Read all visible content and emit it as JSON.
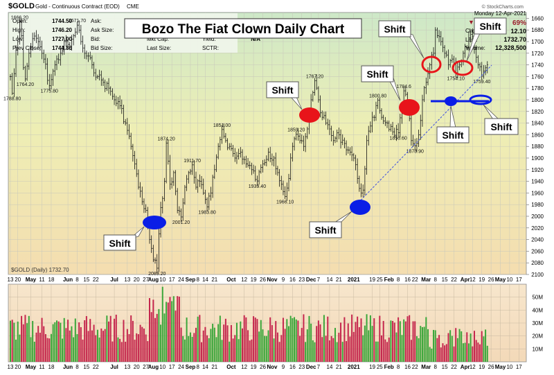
{
  "header": {
    "symbol": "$GOLD",
    "description": "Gold - Continuous Contract (EOD)",
    "exchange": "CME",
    "date": "Monday 12-Apr-2021",
    "copyright": "© StockCharts.com",
    "rows": [
      {
        "label": "Open:",
        "value": "1744.50"
      },
      {
        "label": "High:",
        "value": "1746.20"
      },
      {
        "label": "Low:",
        "value": "1727.00"
      },
      {
        "label": "Prev Close:",
        "value": "1744.80"
      }
    ],
    "col2": [
      "Ask:",
      "Ask Size:",
      "Bid:",
      "Bid Size:"
    ],
    "col3": [
      "Mkt Cap:",
      "Last Size:"
    ],
    "col4": [
      "Yield:",
      "SCTR:"
    ],
    "yield_value": "N/A",
    "change_label": "Chg:",
    "change_pct": "69%",
    "change_value": "12.10",
    "last_label": "Last:",
    "last_value": "1732.70",
    "volume_label": "Volume:",
    "volume_value": "12,328,500",
    "legend": "$GOLD (Daily) 1732.70"
  },
  "title_box": "Bozo The Fiat Clown Daily Chart",
  "callouts": [
    {
      "id": "shift-aug",
      "text": "Shift"
    },
    {
      "id": "shift-nov",
      "text": "Shift"
    },
    {
      "id": "shift-dec",
      "text": "Shift"
    },
    {
      "id": "shift-jan",
      "text": "Shift"
    },
    {
      "id": "shift-feb",
      "text": "Shift"
    },
    {
      "id": "shift-mar-top",
      "text": "Shift"
    },
    {
      "id": "shift-apr-top",
      "text": "Shift"
    },
    {
      "id": "shift-mar-bottom",
      "text": "Shift"
    },
    {
      "id": "shift-apr-bottom",
      "text": "Shift"
    }
  ],
  "colors": {
    "up_volume": "#3aa63a",
    "down_volume": "#c4264d",
    "marker_red": "#e8141a",
    "marker_blue": "#0a1ee6",
    "trendline": "#3c4fe0"
  },
  "chart_data": {
    "type": "candlestick",
    "price_axis": {
      "reversed": true,
      "ylim": [
        1650,
        2100
      ],
      "ticks": [
        1660,
        1680,
        1700,
        1720,
        1740,
        1760,
        1780,
        1800,
        1820,
        1840,
        1860,
        1880,
        1900,
        1920,
        1940,
        1960,
        1980,
        2000,
        2020,
        2040,
        2060,
        2080,
        2100
      ]
    },
    "volume_axis": {
      "ylim": [
        0,
        60
      ],
      "unit": "M",
      "ticks": [
        {
          "v": 10,
          "label": "10M"
        },
        {
          "v": 20,
          "label": "20M"
        },
        {
          "v": 30,
          "label": "30M"
        },
        {
          "v": 40,
          "label": "40M"
        },
        {
          "v": 50,
          "label": "50M"
        }
      ]
    },
    "x_labels": [
      {
        "t": "13",
        "i": 0
      },
      {
        "t": "20",
        "i": 4
      },
      {
        "t": "May",
        "i": 11
      },
      {
        "t": "11",
        "i": 17
      },
      {
        "t": "18",
        "i": 22
      },
      {
        "t": "Jun",
        "i": 31
      },
      {
        "t": "8",
        "i": 36
      },
      {
        "t": "15",
        "i": 41
      },
      {
        "t": "22",
        "i": 46
      },
      {
        "t": "Jul",
        "i": 56
      },
      {
        "t": "13",
        "i": 63
      },
      {
        "t": "20",
        "i": 68
      },
      {
        "t": "27",
        "i": 73
      },
      {
        "t": "Aug",
        "i": 77
      },
      {
        "t": "10",
        "i": 82
      },
      {
        "t": "17",
        "i": 87
      },
      {
        "t": "24",
        "i": 92
      },
      {
        "t": "Sep",
        "i": 97
      },
      {
        "t": "8",
        "i": 101
      },
      {
        "t": "14",
        "i": 105
      },
      {
        "t": "21",
        "i": 110
      },
      {
        "t": "Oct",
        "i": 119
      },
      {
        "t": "12",
        "i": 126
      },
      {
        "t": "19",
        "i": 131
      },
      {
        "t": "26",
        "i": 136
      },
      {
        "t": "Nov",
        "i": 141
      },
      {
        "t": "9",
        "i": 147
      },
      {
        "t": "16",
        "i": 152
      },
      {
        "t": "23",
        "i": 157
      },
      {
        "t": "Dec",
        "i": 162
      },
      {
        "t": "7",
        "i": 166
      },
      {
        "t": "14",
        "i": 172
      },
      {
        "t": "21",
        "i": 177
      },
      {
        "t": "2021",
        "i": 185
      },
      {
        "t": "19",
        "i": 195
      },
      {
        "t": "25",
        "i": 199
      },
      {
        "t": "Feb",
        "i": 204
      },
      {
        "t": "8",
        "i": 209
      },
      {
        "t": "16",
        "i": 214
      },
      {
        "t": "22",
        "i": 218
      },
      {
        "t": "Mar",
        "i": 224
      },
      {
        "t": "8",
        "i": 229
      },
      {
        "t": "15",
        "i": 234
      },
      {
        "t": "22",
        "i": 239
      },
      {
        "t": "Apr",
        "i": 245
      },
      {
        "t": "12",
        "i": 249
      },
      {
        "t": "19",
        "i": 254
      },
      {
        "t": "26",
        "i": 259
      },
      {
        "t": "May",
        "i": 264
      },
      {
        "t": "10",
        "i": 269
      },
      {
        "t": "17",
        "i": 274
      }
    ],
    "price_anchors": [
      [
        0,
        1760
      ],
      [
        1,
        1788.8
      ],
      [
        2,
        1755
      ],
      [
        3,
        1715
      ],
      [
        4,
        1700
      ],
      [
        5,
        1666.2
      ],
      [
        6,
        1690
      ],
      [
        7,
        1745
      ],
      [
        8,
        1764.2
      ],
      [
        10,
        1720
      ],
      [
        12,
        1695
      ],
      [
        15,
        1700
      ],
      [
        18,
        1730
      ],
      [
        21,
        1775.8
      ],
      [
        24,
        1740
      ],
      [
        27,
        1720
      ],
      [
        30,
        1700
      ],
      [
        32,
        1710
      ],
      [
        34,
        1690
      ],
      [
        36,
        1671.7
      ],
      [
        38,
        1700
      ],
      [
        40,
        1720
      ],
      [
        44,
        1740
      ],
      [
        47,
        1760
      ],
      [
        50,
        1770
      ],
      [
        53,
        1780
      ],
      [
        56,
        1800
      ],
      [
        59,
        1810
      ],
      [
        62,
        1840
      ],
      [
        65,
        1880
      ],
      [
        67,
        1910
      ],
      [
        69,
        1950
      ],
      [
        71,
        1975
      ],
      [
        73,
        1990
      ],
      [
        75,
        2040
      ],
      [
        77,
        2075
      ],
      [
        79,
        2089.2
      ],
      [
        80,
        2030
      ],
      [
        81,
        1985
      ],
      [
        83,
        1940
      ],
      [
        84,
        1874.2
      ],
      [
        86,
        1945
      ],
      [
        88,
        1925
      ],
      [
        90,
        1990
      ],
      [
        92,
        2001.2
      ],
      [
        94,
        1950
      ],
      [
        96,
        1925
      ],
      [
        98,
        1911.7
      ],
      [
        100,
        1950
      ],
      [
        102,
        1940
      ],
      [
        104,
        1960
      ],
      [
        106,
        1983.8
      ],
      [
        108,
        1960
      ],
      [
        110,
        1920
      ],
      [
        112,
        1880
      ],
      [
        114,
        1851
      ],
      [
        116,
        1870
      ],
      [
        118,
        1880
      ],
      [
        121,
        1900
      ],
      [
        124,
        1890
      ],
      [
        127,
        1910
      ],
      [
        130,
        1920
      ],
      [
        133,
        1939.4
      ],
      [
        136,
        1910
      ],
      [
        139,
        1890
      ],
      [
        142,
        1900
      ],
      [
        144,
        1925
      ],
      [
        146,
        1945
      ],
      [
        148,
        1966.1
      ],
      [
        150,
        1935
      ],
      [
        152,
        1880
      ],
      [
        154,
        1859.2
      ],
      [
        156,
        1870
      ],
      [
        158,
        1880
      ],
      [
        160,
        1850
      ],
      [
        162,
        1800
      ],
      [
        164,
        1767.2
      ],
      [
        166,
        1800
      ],
      [
        168,
        1830
      ],
      [
        170,
        1840
      ],
      [
        172,
        1850
      ],
      [
        174,
        1870
      ],
      [
        177,
        1860
      ],
      [
        180,
        1875
      ],
      [
        183,
        1890
      ],
      [
        185,
        1900
      ],
      [
        187,
        1935
      ],
      [
        189,
        1960
      ],
      [
        190,
        1955
      ],
      [
        192,
        1870
      ],
      [
        194,
        1845
      ],
      [
        196,
        1830
      ],
      [
        198,
        1800.8
      ],
      [
        200,
        1830
      ],
      [
        203,
        1840
      ],
      [
        206,
        1855
      ],
      [
        209,
        1856.6
      ],
      [
        211,
        1820
      ],
      [
        212,
        1784.6
      ],
      [
        214,
        1810
      ],
      [
        216,
        1870
      ],
      [
        218,
        1878.9
      ],
      [
        220,
        1860
      ],
      [
        222,
        1800
      ],
      [
        224,
        1770
      ],
      [
        226,
        1740
      ],
      [
        228,
        1720
      ],
      [
        229,
        1680
      ],
      [
        230,
        1690
      ],
      [
        232,
        1700
      ],
      [
        234,
        1720
      ],
      [
        236,
        1740
      ],
      [
        238,
        1730
      ],
      [
        240,
        1754.1
      ],
      [
        242,
        1740
      ],
      [
        244,
        1720
      ],
      [
        246,
        1710
      ],
      [
        248,
        1687.4
      ],
      [
        250,
        1710
      ],
      [
        252,
        1740
      ],
      [
        254,
        1759.4
      ],
      [
        256,
        1745
      ],
      [
        257,
        1740
      ]
    ],
    "annotations": [
      {
        "label": "1788.80",
        "i": 1,
        "v": 1788.8,
        "pos": "below"
      },
      {
        "label": "1666.20",
        "i": 5,
        "v": 1666.2,
        "pos": "above"
      },
      {
        "label": "1764.20",
        "i": 8,
        "v": 1764.2,
        "pos": "below"
      },
      {
        "label": "1775.80",
        "i": 21,
        "v": 1775.8,
        "pos": "below"
      },
      {
        "label": "1671.70",
        "i": 36,
        "v": 1671.7,
        "pos": "above"
      },
      {
        "label": "2089.20",
        "i": 79,
        "v": 2089.2,
        "pos": "below"
      },
      {
        "label": "1874.20",
        "i": 84,
        "v": 1874.2,
        "pos": "above"
      },
      {
        "label": "2001.20",
        "i": 92,
        "v": 2001.2,
        "pos": "below"
      },
      {
        "label": "1911.70",
        "i": 98,
        "v": 1911.7,
        "pos": "above"
      },
      {
        "label": "1983.80",
        "i": 106,
        "v": 1983.8,
        "pos": "below"
      },
      {
        "label": "1851.00",
        "i": 114,
        "v": 1851.0,
        "pos": "above"
      },
      {
        "label": "1939.40",
        "i": 133,
        "v": 1939.4,
        "pos": "below"
      },
      {
        "label": "1966.10",
        "i": 148,
        "v": 1966.1,
        "pos": "below"
      },
      {
        "label": "1859.20",
        "i": 154,
        "v": 1859.2,
        "pos": "above"
      },
      {
        "label": "1767.20",
        "i": 164,
        "v": 1767.2,
        "pos": "above"
      },
      {
        "label": "1800.80",
        "i": 198,
        "v": 1800.8,
        "pos": "above"
      },
      {
        "label": "1856.60",
        "i": 209,
        "v": 1856.6,
        "pos": "below"
      },
      {
        "label": "1784.6",
        "i": 212,
        "v": 1784.6,
        "pos": "above"
      },
      {
        "label": "1878.90",
        "i": 218,
        "v": 1878.9,
        "pos": "below"
      },
      {
        "label": "1754.10",
        "i": 240,
        "v": 1754.1,
        "pos": "below"
      },
      {
        "label": "1759.40",
        "i": 254,
        "v": 1759.4,
        "pos": "below"
      }
    ]
  }
}
